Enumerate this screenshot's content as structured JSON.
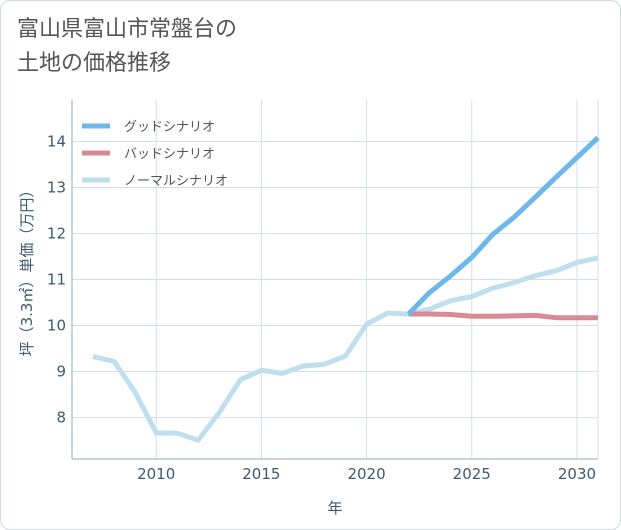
{
  "title_line1": "富山県富山市常盤台の",
  "title_line2": "土地の価格推移",
  "chart_data": {
    "type": "line",
    "title": "富山県富山市常盤台の土地の価格推移",
    "xlabel": "年",
    "ylabel": "坪（3.3㎡）単価（万円）",
    "xlim": [
      2006,
      2031
    ],
    "ylim": [
      7.1,
      14.9
    ],
    "xticks": [
      2010,
      2015,
      2020,
      2025,
      2030
    ],
    "yticks": [
      8,
      9,
      10,
      11,
      12,
      13,
      14
    ],
    "grid": true,
    "legend_position": "top-left",
    "series": [
      {
        "name": "グッドシナリオ",
        "color": "#6cb8ea",
        "x": [
          2022,
          2023,
          2024,
          2025,
          2026,
          2027,
          2028,
          2029,
          2030,
          2031
        ],
        "y": [
          10.25,
          10.72,
          11.08,
          11.48,
          11.98,
          12.35,
          12.78,
          13.22,
          13.65,
          14.08
        ]
      },
      {
        "name": "バッドシナリオ",
        "color": "#d98a94",
        "x": [
          2022,
          2023,
          2024,
          2025,
          2026,
          2027,
          2028,
          2029,
          2030,
          2031
        ],
        "y": [
          10.25,
          10.25,
          10.24,
          10.2,
          10.2,
          10.21,
          10.22,
          10.17,
          10.17,
          10.17
        ]
      },
      {
        "name": "ノーマルシナリオ",
        "color": "#c0dfee",
        "x": [
          2007,
          2008,
          2009,
          2010,
          2011,
          2012,
          2013,
          2014,
          2015,
          2016,
          2017,
          2018,
          2019,
          2020,
          2021,
          2022,
          2023,
          2024,
          2025,
          2026,
          2027,
          2028,
          2029,
          2030,
          2031
        ],
        "y": [
          9.33,
          9.22,
          8.55,
          7.67,
          7.66,
          7.51,
          8.11,
          8.82,
          9.03,
          8.96,
          9.12,
          9.16,
          9.34,
          10.03,
          10.27,
          10.25,
          10.36,
          10.54,
          10.63,
          10.81,
          10.93,
          11.08,
          11.19,
          11.37,
          11.47
        ]
      }
    ]
  }
}
